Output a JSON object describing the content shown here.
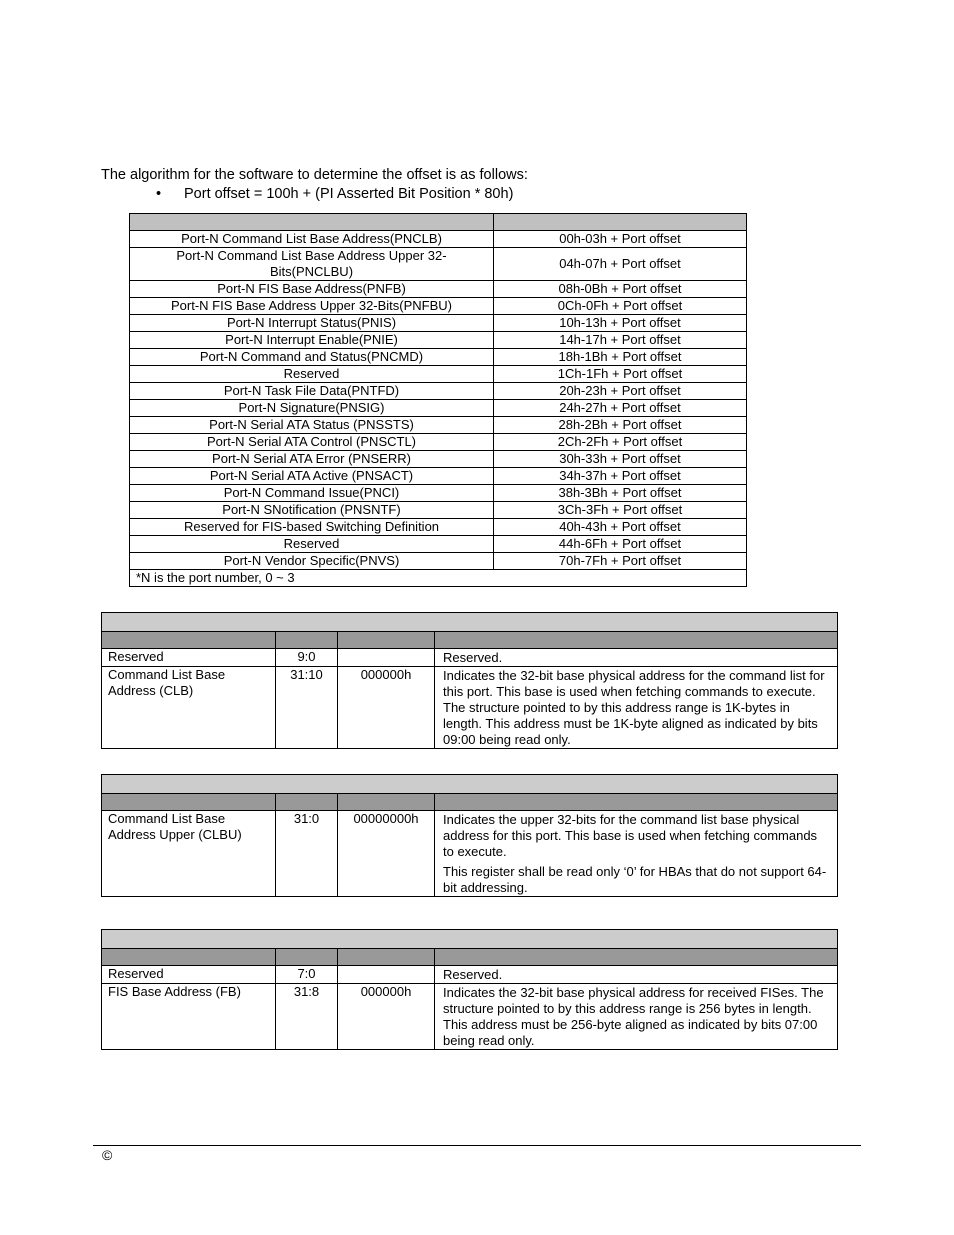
{
  "intro": "The algorithm for the software to determine the offset is as follows:",
  "bullet": "Port offset = 100h + (PI Asserted Bit Position * 80h)",
  "offset_table": {
    "rows": [
      [
        "Port-N Command List Base Address(PNCLB)",
        "00h-03h + Port offset"
      ],
      [
        "Port-N Command List Base Address Upper 32-Bits(PNCLBU)",
        "04h-07h + Port offset"
      ],
      [
        "Port-N FIS Base Address(PNFB)",
        "08h-0Bh + Port offset"
      ],
      [
        "Port-N FIS Base Address Upper 32-Bits(PNFBU)",
        "0Ch-0Fh + Port offset"
      ],
      [
        "Port-N Interrupt Status(PNIS)",
        "10h-13h + Port offset"
      ],
      [
        "Port-N Interrupt Enable(PNIE)",
        "14h-17h + Port offset"
      ],
      [
        "Port-N Command and Status(PNCMD)",
        "18h-1Bh + Port offset"
      ],
      [
        "Reserved",
        "1Ch-1Fh + Port offset"
      ],
      [
        "Port-N Task File Data(PNTFD)",
        "20h-23h + Port offset"
      ],
      [
        "Port-N Signature(PNSIG)",
        "24h-27h + Port offset"
      ],
      [
        "Port-N Serial ATA Status (PNSSTS)",
        "28h-2Bh + Port offset"
      ],
      [
        "Port-N Serial ATA Control (PNSCTL)",
        "2Ch-2Fh + Port offset"
      ],
      [
        "Port-N Serial ATA Error (PNSERR)",
        "30h-33h + Port offset"
      ],
      [
        "Port-N Serial ATA Active (PNSACT)",
        "34h-37h + Port offset"
      ],
      [
        "Port-N Command Issue(PNCI)",
        "38h-3Bh + Port offset"
      ],
      [
        "Port-N SNotification (PNSNTF)",
        "3Ch-3Fh + Port offset"
      ],
      [
        "Reserved for FIS-based Switching Definition",
        "40h-43h + Port offset"
      ],
      [
        "Reserved",
        "44h-6Fh + Port offset"
      ],
      [
        "Port-N Vendor Specific(PNVS)",
        "70h-7Fh + Port offset"
      ]
    ],
    "note": "*N is the port number, 0 ~ 3"
  },
  "register_tables": [
    {
      "rows": [
        {
          "field": "Reserved",
          "bits": "9:0",
          "default": "",
          "desc": [
            "Reserved."
          ]
        },
        {
          "field": "Command List Base Address (CLB)",
          "bits": "31:10",
          "default": "000000h",
          "desc": [
            "Indicates the 32-bit base physical address for the command list for this port.  This base is used when fetching commands to execute.  The structure pointed to by this address range is 1K-bytes in length.  This address must be 1K-byte aligned as indicated by bits 09:00 being read only."
          ]
        }
      ]
    },
    {
      "rows": [
        {
          "field": "Command List Base Address Upper (CLBU)",
          "bits": "31:0",
          "default": "00000000h",
          "desc": [
            "Indicates the upper 32-bits for the command list base physical address for this port.  This base is used when fetching commands to execute.",
            "This register shall be read only ‘0’ for HBAs that do not support 64-bit addressing."
          ]
        }
      ]
    },
    {
      "rows": [
        {
          "field": "Reserved",
          "bits": "7:0",
          "default": "",
          "desc": [
            "Reserved."
          ]
        },
        {
          "field": "FIS Base Address (FB)",
          "bits": "31:8",
          "default": "000000h",
          "desc": [
            "Indicates the 32-bit base physical address for received FISes.  The structure pointed to by this address range is 256 bytes in length.  This address must be 256-byte aligned as indicated by bits 07:00 being read only."
          ]
        }
      ]
    }
  ],
  "footer": {
    "copyright": "©"
  }
}
